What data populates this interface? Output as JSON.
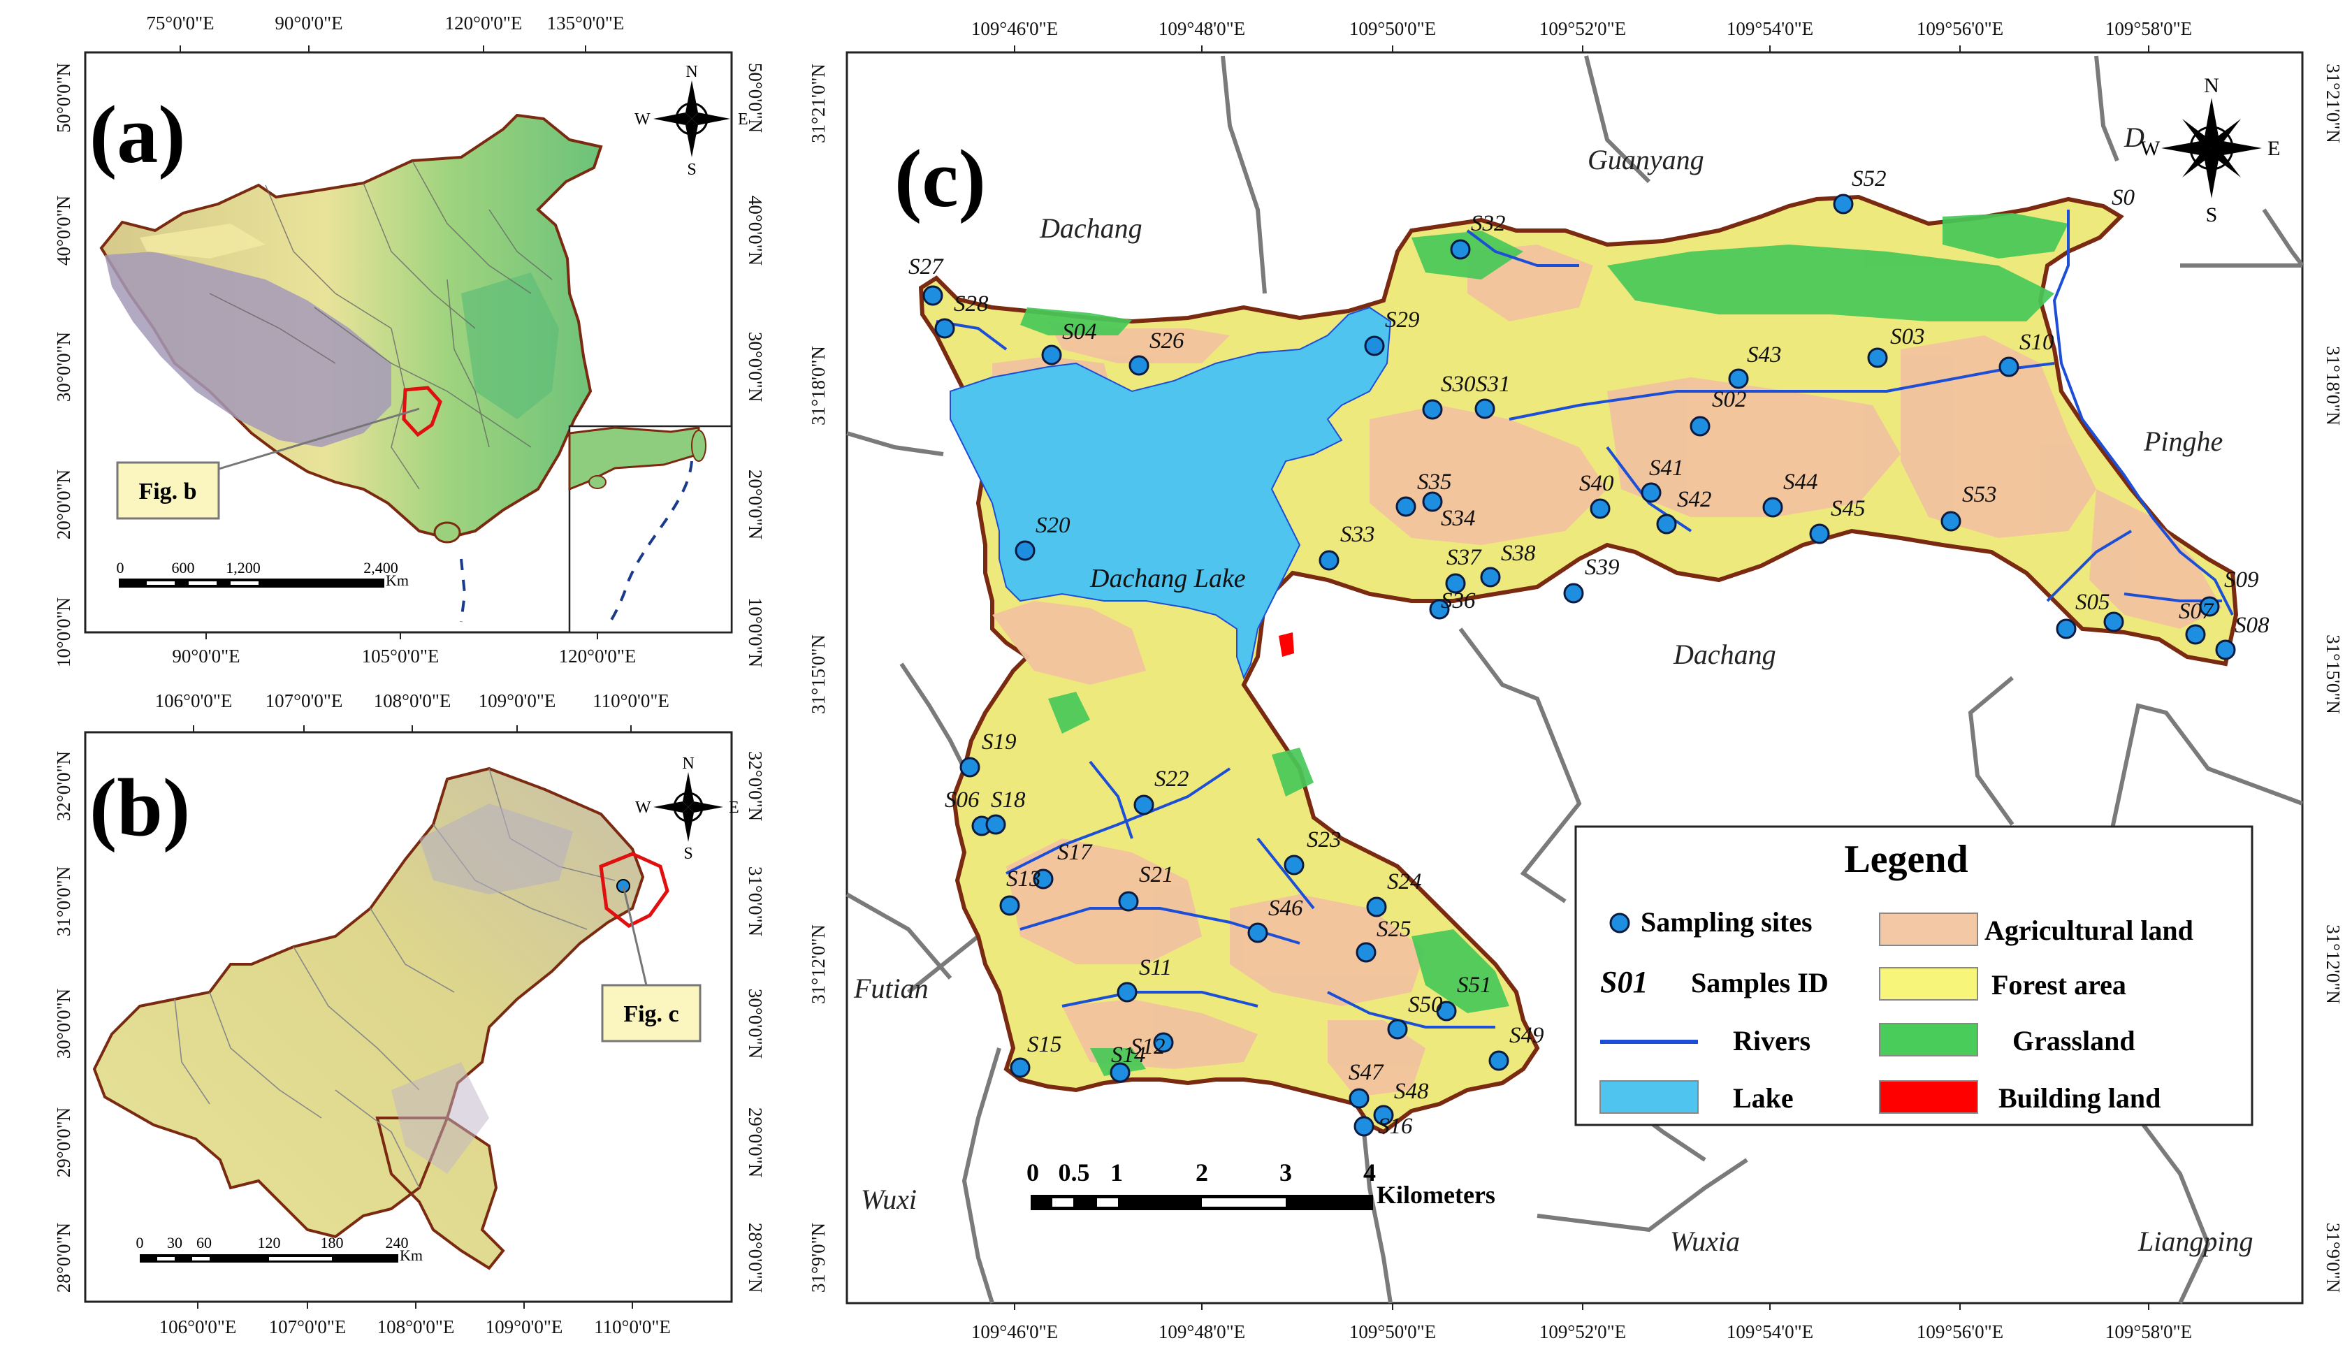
{
  "panels": {
    "a": {
      "label": "(a)",
      "lon_ticks_top": [
        "75°0'0\"E",
        "90°0'0\"E",
        "120°0'0\"E",
        "135°0'0\"E"
      ],
      "lon_ticks_bottom": [
        "90°0'0\"E",
        "105°0'0\"E",
        "120°0'0\"E"
      ],
      "lat_ticks_left": [
        "50°0'0\"N",
        "40°0'0\"N",
        "30°0'0\"N",
        "20°0'0\"N",
        "10°0'0\"N"
      ],
      "lat_ticks_right": [
        "50°0'0\"N",
        "40°0'0\"N",
        "30°0'0\"N",
        "20°0'0\"N",
        "10°0'0\"N"
      ],
      "scale": {
        "ticks": [
          "0",
          "600",
          "1,200",
          "2,400"
        ],
        "unit": "Km"
      },
      "callout": "Fig. b",
      "north": {
        "n": "N",
        "s": "S",
        "e": "E",
        "w": "W"
      }
    },
    "b": {
      "label": "(b)",
      "lon_ticks_top": [
        "106°0'0\"E",
        "107°0'0\"E",
        "108°0'0\"E",
        "109°0'0\"E",
        "110°0'0\"E"
      ],
      "lon_ticks_bottom": [
        "106°0'0\"E",
        "107°0'0\"E",
        "108°0'0\"E",
        "109°0'0\"E",
        "110°0'0\"E"
      ],
      "lat_ticks_left": [
        "32°0'0\"N",
        "31°0'0\"N",
        "30°0'0\"N",
        "29°0'0\"N",
        "28°0'0\"N"
      ],
      "lat_ticks_right": [
        "32°0'0\"N",
        "31°0'0\"N",
        "30°0'0\"N",
        "29°0'0\"N",
        "28°0'0\"N"
      ],
      "scale": {
        "ticks": [
          "0",
          "30",
          "60",
          "120",
          "180",
          "240"
        ],
        "unit": "Km"
      },
      "callout": "Fig. c",
      "north": {
        "n": "N",
        "s": "S",
        "e": "E",
        "w": "W"
      }
    },
    "c": {
      "label": "(c)",
      "lon_ticks": [
        "109°46'0\"E",
        "109°48'0\"E",
        "109°50'0\"E",
        "109°52'0\"E",
        "109°54'0\"E",
        "109°56'0\"E",
        "109°58'0\"E"
      ],
      "lat_ticks": [
        "31°21'0\"N",
        "31°18'0\"N",
        "31°15'0\"N",
        "31°12'0\"N",
        "31°9'0\"N"
      ],
      "places": [
        "Guanyang",
        "Dachang",
        "Pinghe",
        "Dachang",
        "Futian",
        "Wuxi",
        "Wuxia",
        "Liangping",
        "D"
      ],
      "lake_label": "Dachang Lake",
      "sites": [
        "S01",
        "S02",
        "S03",
        "S04",
        "S05",
        "S06",
        "S07",
        "S08",
        "S09",
        "S10",
        "S11",
        "S12",
        "S13",
        "S14",
        "S15",
        "S16",
        "S17",
        "S18",
        "S19",
        "S20",
        "S21",
        "S22",
        "S23",
        "S24",
        "S25",
        "S26",
        "S27",
        "S28",
        "S29",
        "S30",
        "S31",
        "S32",
        "S33",
        "S34",
        "S35",
        "S36",
        "S37",
        "S38",
        "S39",
        "S40",
        "S41",
        "S42",
        "S43",
        "S44",
        "S45",
        "S46",
        "S47",
        "S48",
        "S49",
        "S50",
        "S51",
        "S52",
        "S53"
      ],
      "scale": {
        "ticks": [
          "0",
          "0.5",
          "1",
          "2",
          "3",
          "4"
        ],
        "unit": "Kilometers"
      },
      "north": {
        "n": "N",
        "s": "S",
        "e": "E",
        "w": "W"
      }
    }
  },
  "legend": {
    "title": "Legend",
    "items": [
      {
        "label": "Sampling sites",
        "symbol": "dot",
        "color": "#1e8fe0"
      },
      {
        "label": "Agricultural land",
        "symbol": "swatch",
        "color": "#f3c8a4"
      },
      {
        "label": "Samples ID",
        "symbol": "text",
        "sample": "S01"
      },
      {
        "label": "Forest area",
        "symbol": "swatch",
        "color": "#f7f57a"
      },
      {
        "label": "Rivers",
        "symbol": "line",
        "color": "#1d4fd6"
      },
      {
        "label": "Grassland",
        "symbol": "swatch",
        "color": "#49cc5a"
      },
      {
        "label": "Lake",
        "symbol": "swatch",
        "color": "#4ec4ee"
      },
      {
        "label": "Building land",
        "symbol": "swatch",
        "color": "#ff0000"
      }
    ]
  }
}
